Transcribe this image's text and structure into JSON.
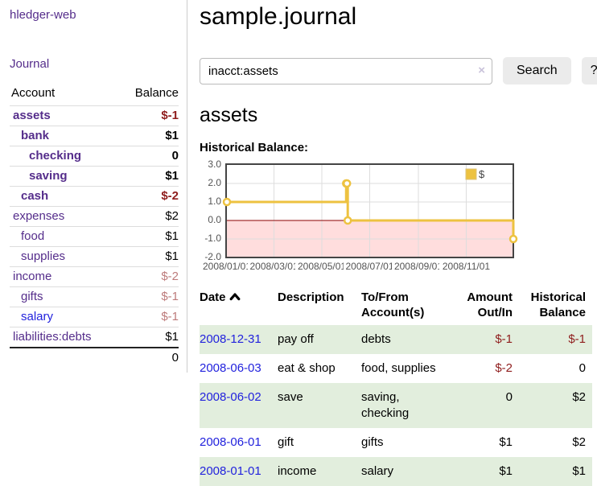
{
  "sidebar": {
    "brand": "hledger-web",
    "nav": {
      "journal": "Journal"
    },
    "accounts_header": {
      "account": "Account",
      "balance": "Balance"
    },
    "accounts": [
      {
        "name": "assets",
        "indent": 1,
        "bold": true,
        "tone": "neg",
        "balance": "$-1"
      },
      {
        "name": "bank",
        "indent": 2,
        "bold": true,
        "tone": "",
        "balance": "$1"
      },
      {
        "name": "checking",
        "indent": 3,
        "bold": true,
        "tone": "",
        "balance": "0"
      },
      {
        "name": "saving",
        "indent": 3,
        "bold": true,
        "tone": "",
        "balance": "$1"
      },
      {
        "name": "cash",
        "indent": 2,
        "bold": true,
        "tone": "neg",
        "balance": "$-2"
      },
      {
        "name": "expenses",
        "indent": 1,
        "bold": false,
        "tone": "",
        "balance": "$2"
      },
      {
        "name": "food",
        "indent": 2,
        "bold": false,
        "tone": "",
        "balance": "$1"
      },
      {
        "name": "supplies",
        "indent": 2,
        "bold": false,
        "tone": "",
        "balance": "$1"
      },
      {
        "name": "income",
        "indent": 1,
        "bold": false,
        "tone": "negfade",
        "balance": "$-2"
      },
      {
        "name": "gifts",
        "indent": 2,
        "bold": false,
        "tone": "negfade",
        "balance": "$-1"
      },
      {
        "name": "salary",
        "indent": 2,
        "bold": false,
        "tone": "negfade",
        "balance": "$-1",
        "unvisited": true
      },
      {
        "name": "liabilities:debts",
        "indent": 1,
        "bold": false,
        "tone": "",
        "balance": "$1"
      }
    ],
    "total": "0"
  },
  "main": {
    "title": "sample.journal",
    "search": {
      "value": "inacct:assets",
      "clear_glyph": "×",
      "button_label": "Search",
      "help_label": "?"
    },
    "account_heading": "assets",
    "chart_label": "Historical Balance:"
  },
  "chart_data": {
    "type": "line",
    "step": true,
    "title": "Historical Balance",
    "series": [
      {
        "name": "$",
        "points": [
          [
            "2008-01-01",
            1
          ],
          [
            "2008-06-01",
            2
          ],
          [
            "2008-06-02",
            2
          ],
          [
            "2008-06-03",
            0
          ],
          [
            "2008-12-31",
            -1
          ]
        ]
      }
    ],
    "x_range": [
      "2008-01-01",
      "2008-12-31"
    ],
    "ylim": [
      -2,
      3
    ],
    "yticks": [
      "3.0",
      "2.0",
      "1.0",
      "0.0",
      "-1.0",
      "-2.0"
    ],
    "xticks": [
      "2008/01/01",
      "2008/03/01",
      "2008/05/01",
      "2008/07/01",
      "2008/09/01",
      "2008/11/01"
    ],
    "legend": "$",
    "legend_position": "top-right",
    "grid": true,
    "colors": {
      "line": "#edc240",
      "negative_fill": "#ffdddd",
      "zero_line": "#8b0000",
      "border": "#444444",
      "gridline": "#dddddd"
    }
  },
  "register": {
    "sort_icon": "chevron-up",
    "headers": {
      "date": "Date",
      "description": "Description",
      "account_line1": "To/From",
      "account_line2": "Account(s)",
      "amount_line1": "Amount",
      "amount_line2": "Out/In",
      "balance_line1": "Historical",
      "balance_line2": "Balance"
    },
    "rows": [
      {
        "date": "2008-12-31",
        "description": "pay off",
        "accounts": "debts",
        "amount": "$-1",
        "amount_tone": "neg",
        "balance": "$-1",
        "balance_tone": "neg"
      },
      {
        "date": "2008-06-03",
        "description": "eat & shop",
        "accounts": "food, supplies",
        "amount": "$-2",
        "amount_tone": "neg",
        "balance": "0",
        "balance_tone": ""
      },
      {
        "date": "2008-06-02",
        "description": "save",
        "accounts": "saving, checking",
        "amount": "0",
        "amount_tone": "",
        "balance": "$2",
        "balance_tone": ""
      },
      {
        "date": "2008-06-01",
        "description": "gift",
        "accounts": "gifts",
        "amount": "$1",
        "amount_tone": "",
        "balance": "$2",
        "balance_tone": ""
      },
      {
        "date": "2008-01-01",
        "description": "income",
        "accounts": "salary",
        "amount": "$1",
        "amount_tone": "",
        "balance": "$1",
        "balance_tone": ""
      }
    ]
  }
}
